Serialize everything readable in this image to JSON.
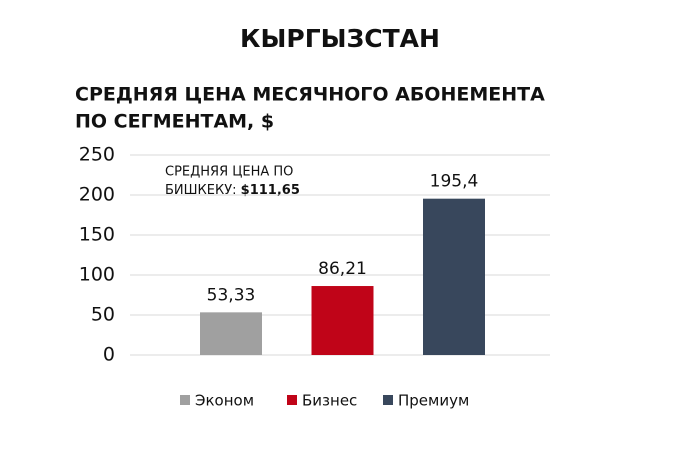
{
  "chart_data": {
    "type": "bar",
    "heading": "КЫРГЫЗСТАН",
    "title": [
      "СРЕДНЯЯ ЦЕНА МЕСЯЧНОГО АБОНЕМЕНТА",
      "ПО СЕГМЕНТАМ, $"
    ],
    "annotation": {
      "lines": [
        "СРЕДНЯЯ ЦЕНА ПО",
        "БИШКЕКУ:"
      ],
      "highlight": "$111,65"
    },
    "categories": [
      "Эконом",
      "Бизнес",
      "Премиум"
    ],
    "values": [
      53.33,
      86.21,
      195.4
    ],
    "value_labels": [
      "53,33",
      "86,21",
      "195,4"
    ],
    "colors": [
      "#a0a0a0",
      "#c00418",
      "#38475c"
    ],
    "ylim": [
      0,
      250
    ],
    "yticks": [
      0,
      50,
      100,
      150,
      200,
      250
    ],
    "grid": true,
    "legend": "bottom"
  }
}
